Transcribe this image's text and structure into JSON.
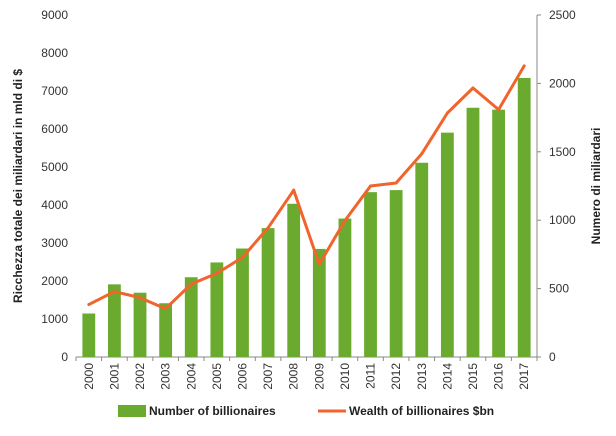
{
  "chart_data": {
    "type": "bar",
    "categories": [
      "2000",
      "2001",
      "2002",
      "2003",
      "2004",
      "2005",
      "2006",
      "2007",
      "2008",
      "2009",
      "2010",
      "2011",
      "2012",
      "2013",
      "2014",
      "2015",
      "2016",
      "2017"
    ],
    "series": [
      {
        "name": "Number of billionaires",
        "type": "bar",
        "axis": "right",
        "color": "#6aaa2f",
        "values": [
          318,
          531,
          470,
          393,
          583,
          691,
          793,
          942,
          1120,
          790,
          1012,
          1205,
          1220,
          1420,
          1640,
          1822,
          1808,
          2040
        ]
      },
      {
        "name": "Wealth of billionaires $bn",
        "type": "line",
        "axis": "left",
        "color": "#f0642d",
        "values": [
          1380,
          1720,
          1560,
          1270,
          1920,
          2200,
          2620,
          3400,
          4390,
          2440,
          3590,
          4500,
          4580,
          5350,
          6420,
          7080,
          6510,
          7660
        ]
      }
    ],
    "yLeft": {
      "label": "Ricchezza totale dei miliardari in mld di $",
      "min": 0,
      "max": 9000,
      "step": 1000,
      "ticks": [
        "0",
        "1000",
        "2000",
        "3000",
        "4000",
        "5000",
        "6000",
        "7000",
        "8000",
        "9000"
      ]
    },
    "yRight": {
      "label": "Numero di miliardari",
      "min": 0,
      "max": 2500,
      "step": 500,
      "ticks": [
        "0",
        "500",
        "1000",
        "1500",
        "2000",
        "2500"
      ]
    },
    "xlabel": "",
    "grid": false,
    "legend": "bottom"
  }
}
